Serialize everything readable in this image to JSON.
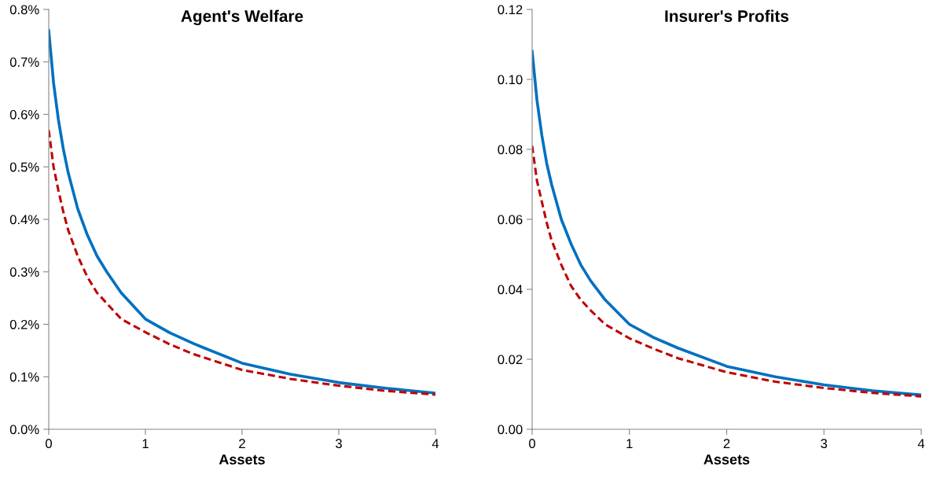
{
  "chart_data": [
    {
      "type": "line",
      "title": "Agent's Welfare",
      "xlabel": "Assets",
      "x": [
        0,
        0.025,
        0.05,
        0.1,
        0.15,
        0.2,
        0.3,
        0.4,
        0.5,
        0.6,
        0.75,
        1,
        1.25,
        1.5,
        2,
        2.5,
        3,
        3.5,
        4
      ],
      "series": [
        {
          "color": "#0070c0",
          "line_style": "solid",
          "values": [
            0.76,
            0.71,
            0.66,
            0.59,
            0.535,
            0.49,
            0.42,
            0.37,
            0.33,
            0.3,
            0.26,
            0.21,
            0.184,
            0.163,
            0.126,
            0.105,
            0.089,
            0.078,
            0.069
          ]
        },
        {
          "color": "#c00000",
          "line_style": "dashed",
          "values": [
            0.57,
            0.535,
            0.5,
            0.455,
            0.415,
            0.38,
            0.33,
            0.29,
            0.26,
            0.24,
            0.21,
            0.185,
            0.162,
            0.143,
            0.113,
            0.096,
            0.083,
            0.073,
            0.066
          ]
        }
      ],
      "xlim": [
        0,
        4
      ],
      "xticks": [
        0,
        1,
        2,
        3,
        4
      ],
      "ylim": [
        0,
        0.8
      ],
      "yticks": [
        {
          "value": 0,
          "label": "0.0%"
        },
        {
          "value": 0.1,
          "label": "0.1%"
        },
        {
          "value": 0.2,
          "label": "0.2%"
        },
        {
          "value": 0.3,
          "label": "0.3%"
        },
        {
          "value": 0.4,
          "label": "0.4%"
        },
        {
          "value": 0.5,
          "label": "0.5%"
        },
        {
          "value": 0.6,
          "label": "0.6%"
        },
        {
          "value": 0.7,
          "label": "0.7%"
        },
        {
          "value": 0.8,
          "label": "0.8%"
        }
      ],
      "grid": false
    },
    {
      "type": "line",
      "title": "Insurer's Profits",
      "xlabel": "Assets",
      "x": [
        0,
        0.025,
        0.05,
        0.1,
        0.15,
        0.2,
        0.3,
        0.4,
        0.5,
        0.6,
        0.75,
        1,
        1.25,
        1.5,
        2,
        2.5,
        3,
        3.5,
        4
      ],
      "series": [
        {
          "color": "#0070c0",
          "line_style": "solid",
          "values": [
            0.108,
            0.101,
            0.094,
            0.084,
            0.076,
            0.07,
            0.06,
            0.053,
            0.047,
            0.0425,
            0.037,
            0.03,
            0.0262,
            0.0232,
            0.018,
            0.015,
            0.0127,
            0.011,
            0.0098
          ]
        },
        {
          "color": "#c00000",
          "line_style": "dashed",
          "values": [
            0.081,
            0.076,
            0.071,
            0.065,
            0.059,
            0.054,
            0.047,
            0.041,
            0.037,
            0.034,
            0.03,
            0.026,
            0.023,
            0.0203,
            0.0163,
            0.0136,
            0.0118,
            0.0104,
            0.0094
          ]
        }
      ],
      "xlim": [
        0,
        4
      ],
      "xticks": [
        0,
        1,
        2,
        3,
        4
      ],
      "ylim": [
        0,
        0.12
      ],
      "yticks": [
        {
          "value": 0,
          "label": "0.00"
        },
        {
          "value": 0.02,
          "label": "0.02"
        },
        {
          "value": 0.04,
          "label": "0.04"
        },
        {
          "value": 0.06,
          "label": "0.06"
        },
        {
          "value": 0.08,
          "label": "0.08"
        },
        {
          "value": 0.1,
          "label": "0.10"
        },
        {
          "value": 0.12,
          "label": "0.12"
        }
      ],
      "grid": false
    }
  ]
}
